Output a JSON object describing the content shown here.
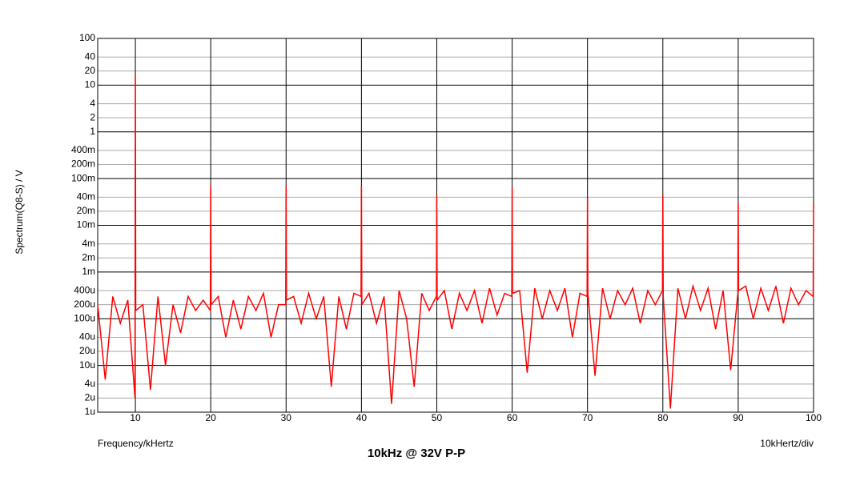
{
  "chart_data": {
    "type": "line",
    "title": "10kHz @ 32V P-P",
    "x_label": "Frequency/kHertz",
    "x_scale_note": "10kHertz/div",
    "y_label": "Spectrum(Q8-S) / V",
    "ylog": true,
    "grid": true,
    "xlim": [
      5,
      100
    ],
    "xticks": [
      10,
      20,
      30,
      40,
      50,
      60,
      70,
      80,
      90,
      100
    ],
    "ylim": [
      1e-06,
      100
    ],
    "yticks": [
      100,
      40,
      20,
      10,
      4,
      2,
      1,
      {
        "value": 0.4,
        "label": "400m"
      },
      {
        "value": 0.2,
        "label": "200m"
      },
      {
        "value": 0.1,
        "label": "100m"
      },
      {
        "value": 0.04,
        "label": "40m"
      },
      {
        "value": 0.02,
        "label": "20m"
      },
      {
        "value": 0.01,
        "label": "10m"
      },
      {
        "value": 0.004,
        "label": "4m"
      },
      {
        "value": 0.002,
        "label": "2m"
      },
      {
        "value": 0.001,
        "label": "1m"
      },
      {
        "value": 0.0004,
        "label": "400u"
      },
      {
        "value": 0.0002,
        "label": "200u"
      },
      {
        "value": 0.0001,
        "label": "100u"
      },
      {
        "value": 4e-05,
        "label": "40u"
      },
      {
        "value": 2e-05,
        "label": "20u"
      },
      {
        "value": 1e-05,
        "label": "10u"
      },
      {
        "value": 4e-06,
        "label": "4u"
      },
      {
        "value": 2e-06,
        "label": "2u"
      },
      {
        "value": 1e-06,
        "label": "1u"
      }
    ],
    "x": [
      5,
      6,
      7,
      8,
      9,
      9.95,
      10,
      10.05,
      11,
      12,
      13,
      14,
      15,
      16,
      17,
      18,
      19,
      19.95,
      20,
      20.05,
      21,
      22,
      23,
      24,
      25,
      26,
      27,
      28,
      29,
      29.95,
      30,
      30.05,
      31,
      32,
      33,
      34,
      35,
      36,
      37,
      38,
      39,
      39.95,
      40,
      40.05,
      41,
      42,
      43,
      44,
      45,
      46,
      47,
      48,
      49,
      49.95,
      50,
      50.05,
      51,
      52,
      53,
      54,
      55,
      56,
      57,
      58,
      59,
      59.95,
      60,
      60.05,
      61,
      62,
      63,
      64,
      65,
      66,
      67,
      68,
      69,
      69.95,
      70,
      70.05,
      71,
      72,
      73,
      74,
      75,
      76,
      77,
      78,
      79,
      79.95,
      80,
      80.05,
      81,
      82,
      83,
      84,
      85,
      86,
      87,
      88,
      89,
      89.95,
      90,
      90.05,
      91,
      92,
      93,
      94,
      95,
      96,
      97,
      98,
      99,
      99.95,
      100
    ],
    "series": [
      {
        "name": "Spectrum(Q8-S)",
        "color": "#ff0000",
        "values": [
          0.0002,
          5e-06,
          0.0003,
          8e-05,
          0.00025,
          2e-06,
          18,
          0.00015,
          0.0002,
          3e-06,
          0.0003,
          1e-05,
          0.0002,
          5e-05,
          0.0003,
          0.00015,
          0.00025,
          0.00015,
          0.07,
          0.0002,
          0.0003,
          4e-05,
          0.00025,
          6e-05,
          0.0003,
          0.00015,
          0.00035,
          4e-05,
          0.0002,
          0.0002,
          0.07,
          0.00025,
          0.0003,
          8e-05,
          0.00035,
          0.0001,
          0.0003,
          3.5e-06,
          0.0003,
          6e-05,
          0.00035,
          0.0003,
          0.07,
          0.0002,
          0.00035,
          8e-05,
          0.0003,
          1.5e-06,
          0.0004,
          0.0001,
          3.5e-06,
          0.00035,
          0.00015,
          0.0003,
          0.045,
          0.00025,
          0.0004,
          6e-05,
          0.00035,
          0.00015,
          0.0004,
          8e-05,
          0.00045,
          0.00012,
          0.00035,
          0.0003,
          0.065,
          0.00035,
          0.0004,
          7e-06,
          0.00045,
          0.0001,
          0.0004,
          0.00015,
          0.00045,
          4e-05,
          0.00035,
          0.0003,
          0.04,
          0.00035,
          6e-06,
          0.00045,
          0.0001,
          0.0004,
          0.0002,
          0.00045,
          8e-05,
          0.0004,
          0.0002,
          0.0004,
          0.045,
          0.0003,
          1.2e-06,
          0.00045,
          0.0001,
          0.0005,
          0.00015,
          0.00045,
          6e-05,
          0.0004,
          8e-06,
          0.00035,
          0.03,
          0.0004,
          0.0005,
          0.0001,
          0.00045,
          0.00015,
          0.0005,
          8e-05,
          0.00045,
          0.0002,
          0.0004,
          0.0003,
          0.03
        ]
      }
    ]
  }
}
